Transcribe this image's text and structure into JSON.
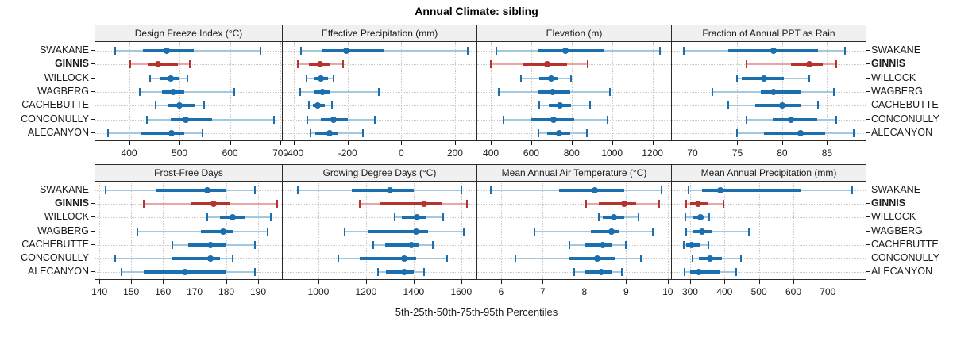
{
  "title": "Annual Climate: sibling",
  "caption": "5th-25th-50th-75th-95th Percentiles",
  "stations": [
    "SWAKANE",
    "GINNIS",
    "WILLOCK",
    "WAGBERG",
    "CACHEBUTTE",
    "CONCONULLY",
    "ALECANYON"
  ],
  "highlight_station": "GINNIS",
  "colors": {
    "blue_dark": "#1b6fae",
    "blue_light": "#a5c8e1",
    "red_dark": "#b5342f",
    "red_light": "#e9a6a6",
    "grid": "#c9c9c9",
    "strip_bg": "#f0f0f0",
    "border": "#2a2a2a",
    "text": "#1a1a1a"
  },
  "chart_data": {
    "type": "dot-interval",
    "note": "horizontal 5-25-50-75-95 percentile intervals; thin line = 5th-95th with end caps, thick line = 25th-75th, dot = median; GINNIS highlighted red",
    "percentile_levels": [
      5,
      25,
      50,
      75,
      95
    ],
    "stations": [
      "SWAKANE",
      "GINNIS",
      "WILLOCK",
      "WAGBERG",
      "CACHEBUTTE",
      "CONCONULLY",
      "ALECANYON"
    ],
    "grid": "dotted",
    "layout_rows": 2,
    "layout_cols": 4,
    "panels": [
      {
        "title": "Design Freeze Index (°C)",
        "xmin": 333,
        "xmax": 703,
        "ticks": [
          400,
          500,
          600,
          700
        ],
        "values": {
          "SWAKANE": [
            372,
            428,
            474,
            528,
            660
          ],
          "GINNIS": [
            403,
            437,
            457,
            497,
            520
          ],
          "WILLOCK": [
            442,
            461,
            483,
            500,
            515
          ],
          "WAGBERG": [
            421,
            466,
            487,
            510,
            609
          ],
          "CACHEBUTTE": [
            453,
            477,
            500,
            531,
            549
          ],
          "CONCONULLY": [
            435,
            482,
            513,
            565,
            688
          ],
          "ALECANYON": [
            358,
            422,
            484,
            510,
            546
          ]
        }
      },
      {
        "title": "Effective Precipitation (mm)",
        "xmin": -442,
        "xmax": 280,
        "ticks": [
          -400,
          -200,
          0,
          200
        ],
        "values": {
          "SWAKANE": [
            -373,
            -298,
            -205,
            -66,
            248
          ],
          "GINNIS": [
            -385,
            -343,
            -304,
            -267,
            -217
          ],
          "WILLOCK": [
            -353,
            -323,
            -299,
            -273,
            -252
          ],
          "WAGBERG": [
            -377,
            -328,
            -293,
            -263,
            -83
          ],
          "CACHEBUTTE": [
            -343,
            -330,
            -311,
            -284,
            -260
          ],
          "CONCONULLY": [
            -349,
            -299,
            -253,
            -200,
            -98
          ],
          "ALECANYON": [
            -337,
            -320,
            -266,
            -239,
            -144
          ]
        }
      },
      {
        "title": "Elevation (m)",
        "xmin": 333,
        "xmax": 1292,
        "ticks": [
          400,
          600,
          800,
          1000,
          1200
        ],
        "values": {
          "SWAKANE": [
            428,
            637,
            768,
            956,
            1238
          ],
          "GINNIS": [
            400,
            562,
            677,
            779,
            881
          ],
          "WILLOCK": [
            551,
            641,
            697,
            733,
            796
          ],
          "WAGBERG": [
            441,
            634,
            706,
            792,
            991
          ],
          "CACHEBUTTE": [
            641,
            687,
            743,
            798,
            890
          ],
          "CONCONULLY": [
            463,
            595,
            710,
            814,
            979
          ],
          "ALECANYON": [
            634,
            680,
            737,
            792,
            875
          ]
        }
      },
      {
        "title": "Fraction of Annual PPT as Rain",
        "xmin": 67.7,
        "xmax": 89.3,
        "ticks": [
          70,
          75,
          80,
          85
        ],
        "values": {
          "SWAKANE": [
            69,
            74,
            79,
            84,
            87
          ],
          "GINNIS": [
            76,
            81,
            83,
            84.5,
            86
          ],
          "WILLOCK": [
            75,
            75.5,
            78,
            80.2,
            83
          ],
          "WAGBERG": [
            72.2,
            77.6,
            79,
            82,
            85.8
          ],
          "CACHEBUTTE": [
            74,
            77,
            80,
            82,
            84
          ],
          "CONCONULLY": [
            76,
            78.9,
            81,
            83.9,
            86
          ],
          "ALECANYON": [
            75,
            78,
            82,
            84.8,
            88
          ]
        }
      },
      {
        "title": "Frost-Free Days",
        "xmin": 138.7,
        "xmax": 197.5,
        "ticks": [
          140,
          150,
          160,
          170,
          180,
          190
        ],
        "values": {
          "SWAKANE": [
            142,
            158,
            174,
            180,
            189
          ],
          "GINNIS": [
            154,
            169,
            176,
            181,
            196
          ],
          "WILLOCK": [
            174,
            178,
            182,
            186,
            194
          ],
          "WAGBERG": [
            152,
            172,
            179,
            182,
            193
          ],
          "CACHEBUTTE": [
            163,
            168,
            175,
            180,
            189
          ],
          "CONCONULLY": [
            145,
            163,
            175,
            178,
            182
          ],
          "ALECANYON": [
            147,
            154,
            167,
            180,
            189
          ]
        }
      },
      {
        "title": "Growing Degree Days (°C)",
        "xmin": 850,
        "xmax": 1664,
        "ticks": [
          1000,
          1200,
          1400,
          1600
        ],
        "values": {
          "SWAKANE": [
            915,
            1140,
            1300,
            1400,
            1600
          ],
          "GINNIS": [
            1175,
            1260,
            1445,
            1520,
            1625
          ],
          "WILLOCK": [
            1320,
            1350,
            1415,
            1450,
            1525
          ],
          "WAGBERG": [
            1110,
            1210,
            1410,
            1460,
            1610
          ],
          "CACHEBUTTE": [
            1230,
            1280,
            1390,
            1425,
            1480
          ],
          "CONCONULLY": [
            1085,
            1175,
            1360,
            1410,
            1540
          ],
          "ALECANYON": [
            1250,
            1285,
            1360,
            1400,
            1445
          ]
        }
      },
      {
        "title": "Mean Annual Air Temperature (°C)",
        "xmin": 5.43,
        "xmax": 10.08,
        "ticks": [
          6,
          7,
          8,
          9,
          10
        ],
        "values": {
          "SWAKANE": [
            5.75,
            7.4,
            8.25,
            8.95,
            9.85
          ],
          "GINNIS": [
            8.05,
            8.35,
            8.95,
            9.25,
            9.8
          ],
          "WILLOCK": [
            8.35,
            8.45,
            8.7,
            8.95,
            9.3
          ],
          "WAGBERG": [
            6.8,
            8.15,
            8.65,
            8.85,
            9.65
          ],
          "CACHEBUTTE": [
            7.65,
            8.0,
            8.45,
            8.65,
            9.0
          ],
          "CONCONULLY": [
            6.35,
            7.65,
            8.3,
            8.75,
            9.35
          ],
          "ALECANYON": [
            7.75,
            8.0,
            8.4,
            8.65,
            8.9
          ]
        }
      },
      {
        "title": "Mean Annual Precipitation (mm)",
        "xmin": 247,
        "xmax": 810,
        "ticks": [
          300,
          400,
          500,
          600,
          700
        ],
        "values": {
          "SWAKANE": [
            295,
            335,
            388,
            620,
            770
          ],
          "GINNIS": [
            288,
            300,
            323,
            354,
            396
          ],
          "WILLOCK": [
            287,
            308,
            329,
            342,
            356
          ],
          "WAGBERG": [
            288,
            310,
            335,
            365,
            471
          ],
          "CACHEBUTTE": [
            281,
            288,
            305,
            327,
            354
          ],
          "CONCONULLY": [
            308,
            325,
            358,
            392,
            448
          ],
          "ALECANYON": [
            283,
            300,
            325,
            385,
            435
          ]
        }
      }
    ]
  }
}
